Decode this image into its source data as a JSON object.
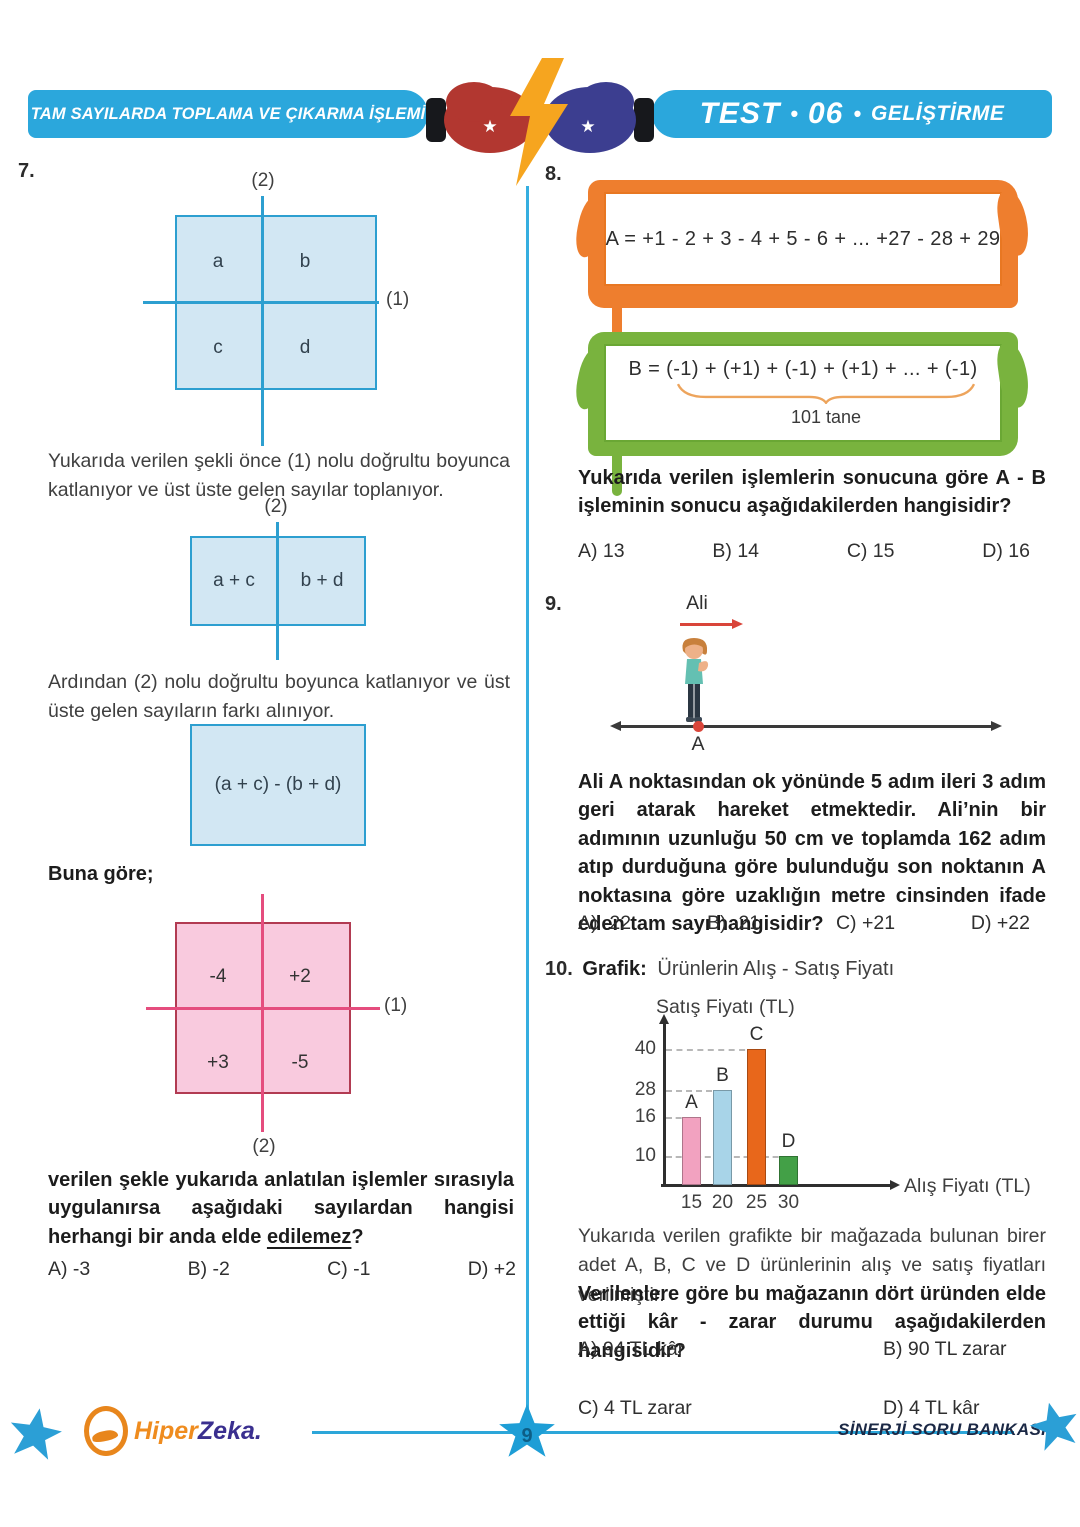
{
  "header": {
    "topic_title": "TAM SAYILARDA TOPLAMA VE ÇIKARMA İŞLEMİ",
    "test_label": "TEST",
    "test_number": "06",
    "test_type": "GELİŞTİRME",
    "sep": "•"
  },
  "questions": {
    "q7": {
      "number": "7.",
      "fig1": {
        "line1_label": "(1)",
        "line2_label": "(2)",
        "cells": [
          "a",
          "b",
          "c",
          "d"
        ]
      },
      "para1": "Yukarıda verilen şekli önce (1) nolu doğrultu boyunca katlanıyor ve üst üste gelen sayılar toplanıyor.",
      "fig2": {
        "line2_label": "(2)",
        "cells": [
          "a + c",
          "b + d"
        ]
      },
      "para2": "Ardından (2) nolu doğrultu boyunca katlanıyor ve üst üste gelen sayıların farkı alınıyor.",
      "fig3": {
        "expression": "(a + c) - (b + d)"
      },
      "buna_gore": "Buna göre;",
      "fig4": {
        "line1_label": "(1)",
        "line2_label": "(2)",
        "cells": [
          "-4",
          "+2",
          "+3",
          "-5"
        ]
      },
      "prompt_pre": "verilen şekle yukarıda anlatılan işlemler sırasıyla uygulanırsa aşağıdaki sayılardan hangisi herhangi bir anda elde ",
      "prompt_underlined": "edilemez",
      "prompt_post": "?",
      "options": [
        "A) -3",
        "B) -2",
        "C) -1",
        "D) +2"
      ]
    },
    "q8": {
      "number": "8.",
      "expr_a": "A = +1 - 2 + 3 - 4 + 5 - 6 + ... +27 - 28 + 29",
      "expr_b": "B = (-1) + (+1) + (-1) + (+1) + ... + (-1)",
      "brace_label": "101 tane",
      "prompt": "Yukarıda verilen işlemlerin sonucuna göre A - B işleminin sonucu aşağıdakilerden hangisidir?",
      "options": [
        "A) 13",
        "B) 14",
        "C) 15",
        "D) 16"
      ]
    },
    "q9": {
      "number": "9.",
      "person_label": "Ali",
      "point_label": "A",
      "prompt": "Ali A noktasından ok yönünde 5 adım ileri 3 adım geri atarak hareket etmektedir. Ali’nin bir adımının uzunluğu 50 cm ve toplamda 162 adım atıp durduğuna göre bulunduğu son noktanın A noktasına göre uzaklığın metre cinsinden ifade eden tam sayı hangisidir?",
      "options": [
        "A) -22",
        "B) -21",
        "C) +21",
        "D) +22"
      ]
    },
    "q10": {
      "number": "10.",
      "title_label": "Grafik:",
      "title_rest": "Ürünlerin Alış - Satış Fiyatı",
      "para1": "Yukarıda verilen grafikte bir mağazada bulunan birer adet A, B, C ve D ürünlerinin alış ve satış fiyatları verilmiştir.",
      "prompt": "Verilenlere göre bu mağazanın dört üründen elde ettiği kâr - zarar durumu aşağıdakilerden hangisidir?",
      "options": [
        "A) 94 TL kâr",
        "B) 90 TL zarar",
        "C) 4 TL zarar",
        "D) 4 TL kâr"
      ]
    }
  },
  "chart_data": {
    "type": "bar",
    "title": "Ürünlerin Alış - Satış Fiyatı",
    "xlabel": "Alış Fiyatı (TL)",
    "ylabel": "Satış Fiyatı (TL)",
    "y_ticks": [
      10,
      16,
      28,
      40
    ],
    "x_ticks": [
      15,
      20,
      25,
      30
    ],
    "grid": "dashed horizontal",
    "products": [
      {
        "label": "A",
        "alis_fiyati": 15,
        "satis_fiyati": 16,
        "color": "#f2a2c0"
      },
      {
        "label": "B",
        "alis_fiyati": 20,
        "satis_fiyati": 28,
        "color": "#a8d4e8"
      },
      {
        "label": "C",
        "alis_fiyati": 25,
        "satis_fiyati": 40,
        "color": "#e8671b"
      },
      {
        "label": "D",
        "alis_fiyati": 30,
        "satis_fiyati": 10,
        "color": "#43a047"
      }
    ]
  },
  "footer": {
    "logo_hiper": "Hiper",
    "logo_zeka": "Zeka.",
    "page_number": "9",
    "brand": "SİNERJİ SORU BANKASI"
  },
  "colors": {
    "header_blue": "#2ba7dc",
    "figure_blue_fill": "#d2e7f3",
    "figure_blue_line": "#2d9fd0",
    "figure_pink_fill": "#f9cade",
    "figure_pink_line": "#e54d7e",
    "orange_frame": "#ee7e2e",
    "green_frame": "#79b33e",
    "accent_red": "#d9453a",
    "footer_blue": "#2ca6d9"
  }
}
